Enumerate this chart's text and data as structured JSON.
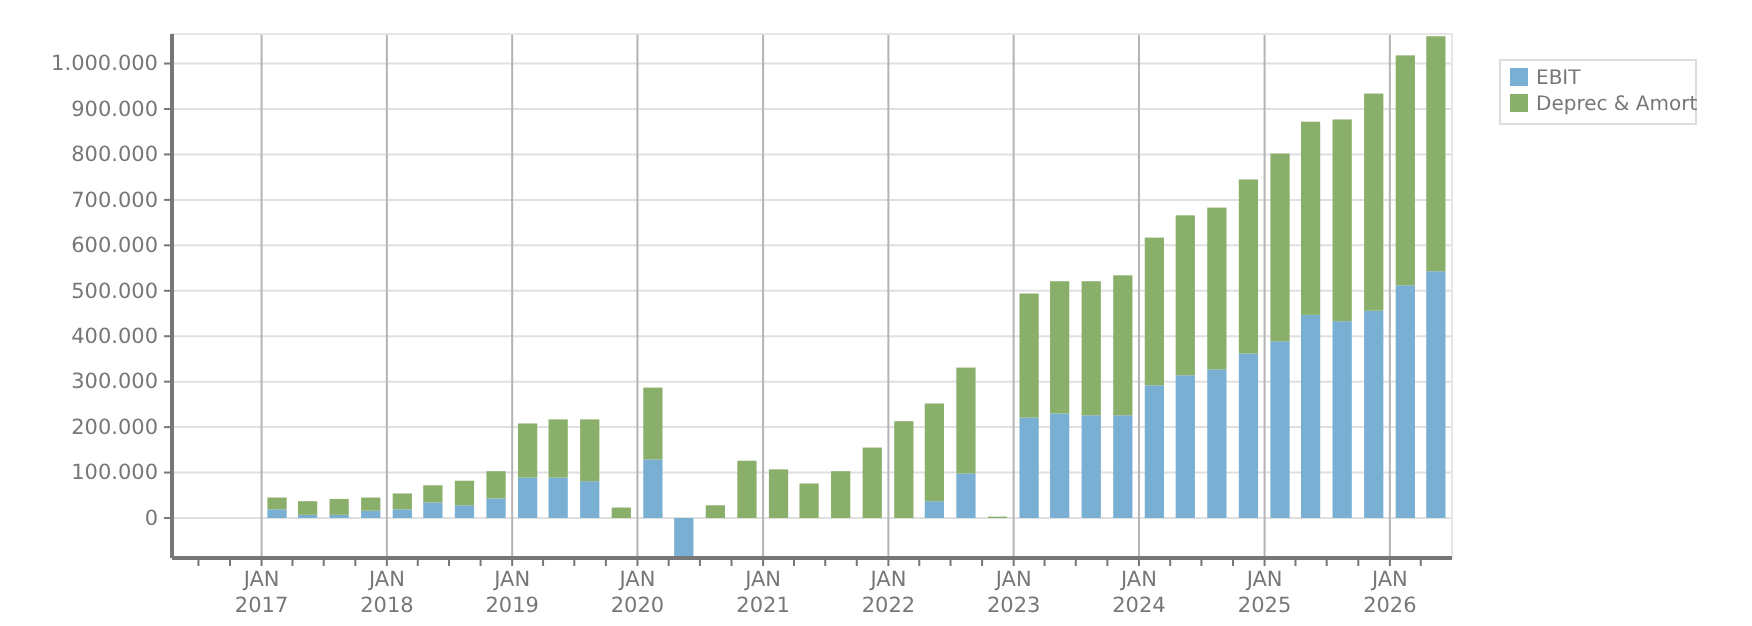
{
  "chart_data": {
    "type": "bar",
    "stacked": true,
    "grid": true,
    "legend": "top right",
    "x": [
      "2017-02-15",
      "2017-05-15",
      "2017-08-15",
      "2017-11-15",
      "2018-02-15",
      "2018-05-15",
      "2018-08-15",
      "2018-11-15",
      "2019-02-15",
      "2019-05-15",
      "2019-08-15",
      "2019-11-15",
      "2020-02-15",
      "2020-05-15",
      "2020-08-15",
      "2020-11-15",
      "2021-02-15",
      "2021-05-15",
      "2021-08-15",
      "2021-11-15",
      "2022-02-15",
      "2022-05-15",
      "2022-08-15",
      "2022-11-15",
      "2023-02-15",
      "2023-05-15",
      "2023-08-15",
      "2023-11-15",
      "2024-02-15",
      "2024-05-15",
      "2024-08-15",
      "2024-11-15",
      "2025-02-15",
      "2025-05-15",
      "2025-08-15",
      "2025-11-15",
      "2026-02-15",
      "2026-05-15"
    ],
    "xlim": [
      "2016-04-15",
      "2026-07-01"
    ],
    "xticks": [
      {
        "value": "2016-07-01",
        "label": null
      },
      {
        "value": "2016-10-01",
        "label": null
      },
      {
        "value": "2017-01-01",
        "label": "JAN\n2017"
      },
      {
        "value": "2017-04-01",
        "label": null
      },
      {
        "value": "2017-07-01",
        "label": null
      },
      {
        "value": "2017-10-01",
        "label": null
      },
      {
        "value": "2018-01-01",
        "label": "JAN\n2018"
      },
      {
        "value": "2018-04-01",
        "label": null
      },
      {
        "value": "2018-07-01",
        "label": null
      },
      {
        "value": "2018-10-01",
        "label": null
      },
      {
        "value": "2019-01-01",
        "label": "JAN\n2019"
      },
      {
        "value": "2019-04-01",
        "label": null
      },
      {
        "value": "2019-07-01",
        "label": null
      },
      {
        "value": "2019-10-01",
        "label": null
      },
      {
        "value": "2020-01-01",
        "label": "JAN\n2020"
      },
      {
        "value": "2020-04-01",
        "label": null
      },
      {
        "value": "2020-07-01",
        "label": null
      },
      {
        "value": "2020-10-01",
        "label": null
      },
      {
        "value": "2021-01-01",
        "label": "JAN\n2021"
      },
      {
        "value": "2021-04-01",
        "label": null
      },
      {
        "value": "2021-07-01",
        "label": null
      },
      {
        "value": "2021-10-01",
        "label": null
      },
      {
        "value": "2022-01-01",
        "label": "JAN\n2022"
      },
      {
        "value": "2022-04-01",
        "label": null
      },
      {
        "value": "2022-07-01",
        "label": null
      },
      {
        "value": "2022-10-01",
        "label": null
      },
      {
        "value": "2023-01-01",
        "label": "JAN\n2023"
      },
      {
        "value": "2023-04-01",
        "label": null
      },
      {
        "value": "2023-07-01",
        "label": null
      },
      {
        "value": "2023-10-01",
        "label": null
      },
      {
        "value": "2024-01-01",
        "label": "JAN\n2024"
      },
      {
        "value": "2024-04-01",
        "label": null
      },
      {
        "value": "2024-07-01",
        "label": null
      },
      {
        "value": "2024-10-01",
        "label": null
      },
      {
        "value": "2025-01-01",
        "label": "JAN\n2025"
      },
      {
        "value": "2025-04-01",
        "label": null
      },
      {
        "value": "2025-07-01",
        "label": null
      },
      {
        "value": "2025-10-01",
        "label": null
      },
      {
        "value": "2026-01-01",
        "label": "JAN\n2026"
      },
      {
        "value": "2026-04-01",
        "label": null
      }
    ],
    "ylim": [
      -88000,
      1065000
    ],
    "yticks": [
      0,
      {
        "value": 100000,
        "label": "100.000"
      },
      {
        "value": 200000,
        "label": "200.000"
      },
      {
        "value": 300000,
        "label": "300.000"
      },
      {
        "value": 400000,
        "label": "400.000"
      },
      {
        "value": 500000,
        "label": "500.000"
      },
      {
        "value": 600000,
        "label": "600.000"
      },
      {
        "value": 700000,
        "label": "700.000"
      },
      {
        "value": 800000,
        "label": "800.000"
      },
      {
        "value": 900000,
        "label": "900.000"
      },
      {
        "value": 1000000,
        "label": "1.000.000"
      }
    ],
    "series": [
      {
        "name": "EBIT",
        "color": "#78afd2",
        "values": [
          19000,
          7000,
          7000,
          16000,
          19000,
          34000,
          28000,
          43000,
          89000,
          89000,
          81000,
          0,
          129000,
          -88000,
          0,
          0,
          0,
          0,
          0,
          0,
          0,
          37000,
          98000,
          0,
          221000,
          230000,
          226000,
          226000,
          292000,
          314000,
          327000,
          362000,
          389000,
          447000,
          433000,
          456000,
          512000,
          543000
        ]
      },
      {
        "name": "Deprec & Amort",
        "color": "#8aaf6a",
        "values": [
          26000,
          30000,
          35000,
          29000,
          35000,
          38000,
          54000,
          60000,
          119000,
          128000,
          136000,
          23000,
          158000,
          0,
          28000,
          126000,
          107000,
          76000,
          103000,
          155000,
          213000,
          215000,
          233000,
          3000,
          273000,
          291000,
          295000,
          308000,
          325000,
          352000,
          356000,
          383000,
          413000,
          425000,
          444000,
          478000,
          506000,
          517000
        ]
      }
    ]
  }
}
